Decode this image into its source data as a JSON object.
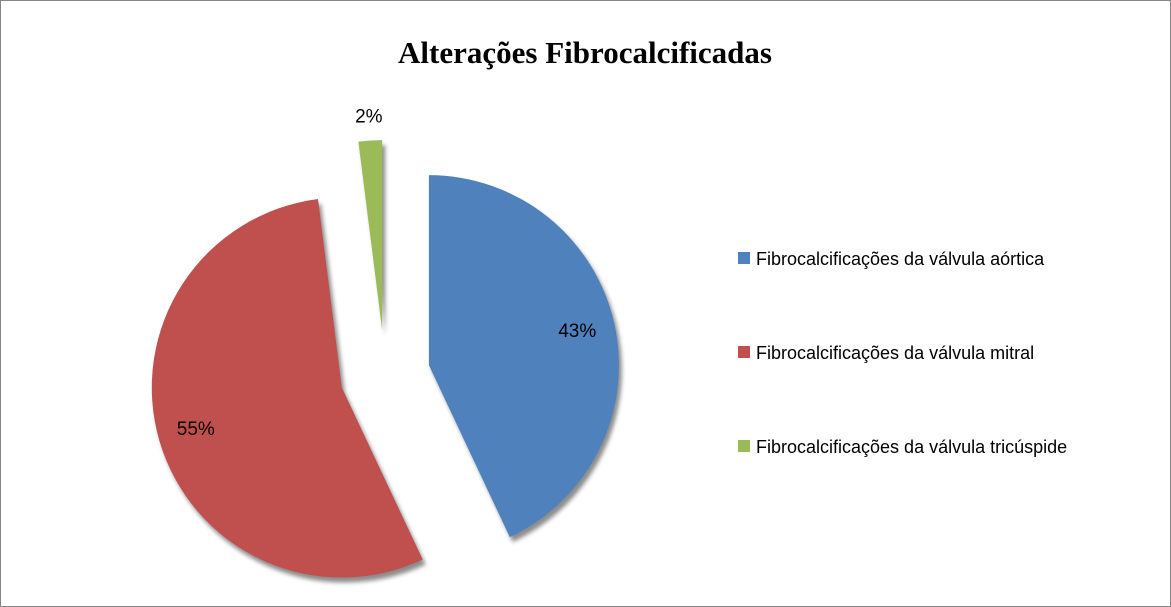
{
  "chart_data": {
    "type": "pie",
    "title": "Alterações Fibrocalcificadas",
    "categories": [
      "Fibrocalcificações da válvula aórtica",
      "Fibrocalcificações da válvula mitral",
      "Fibrocalcificações da válvula tricúspide"
    ],
    "values": [
      43,
      55,
      2
    ],
    "value_labels": [
      "43%",
      "55%",
      "2%"
    ],
    "colors": [
      "#4f81bd",
      "#c0504d",
      "#9bbb59"
    ],
    "legend": "right"
  }
}
